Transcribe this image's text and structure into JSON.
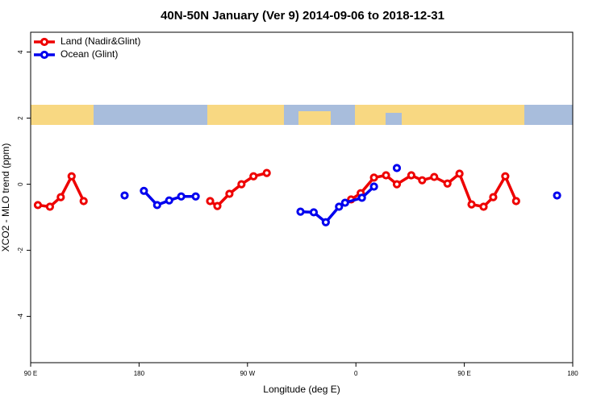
{
  "chart_data": {
    "type": "line",
    "title": "40N-50N January (Ver 9)   2014-09-06 to 2018-12-31",
    "xlabel": "Longitude (deg E)",
    "ylabel": "XCO2 - MLO trend (ppm)",
    "xlim": [
      90,
      540
    ],
    "xticks": [
      {
        "value": 90,
        "label": "90 E"
      },
      180,
      {
        "value": 270,
        "label": "90 W"
      },
      {
        "value": 360,
        "label": "0"
      },
      {
        "value": 450,
        "label": "90 E"
      },
      {
        "value": 540,
        "label": "180"
      }
    ],
    "ylim": [
      -5.4,
      4.6
    ],
    "yticks": [
      -4,
      -2,
      0,
      2,
      4
    ],
    "legend": "top-left",
    "series": [
      {
        "name": "Land (Nadir&Glint)",
        "color": "#ee0000",
        "x": [
          96,
          106,
          115,
          124,
          134,
          null,
          239,
          245,
          255,
          265,
          275,
          286,
          null,
          356,
          364,
          375,
          385,
          394,
          406,
          415,
          425,
          436,
          446,
          456,
          466,
          474,
          484,
          493
        ],
        "values": [
          -0.63,
          -0.68,
          -0.39,
          0.24,
          -0.51,
          null,
          -0.51,
          -0.66,
          -0.29,
          0,
          0.24,
          0.34,
          null,
          -0.46,
          -0.27,
          0.2,
          0.27,
          0,
          0.27,
          0.12,
          0.22,
          0.02,
          0.32,
          -0.61,
          -0.68,
          -0.39,
          0.24,
          -0.51
        ]
      },
      {
        "name": "Ocean (Glint)",
        "color": "#0000ee",
        "x": [
          168,
          null,
          184,
          195,
          205,
          215,
          227,
          null,
          314,
          325,
          335,
          346,
          351,
          365,
          375,
          null,
          394,
          null,
          527
        ],
        "values": [
          -0.34,
          null,
          -0.2,
          -0.63,
          -0.49,
          -0.37,
          -0.37,
          null,
          -0.83,
          -0.85,
          -1.15,
          -0.68,
          -0.56,
          -0.41,
          -0.07,
          null,
          0.49,
          null,
          -0.34
        ]
      }
    ]
  }
}
